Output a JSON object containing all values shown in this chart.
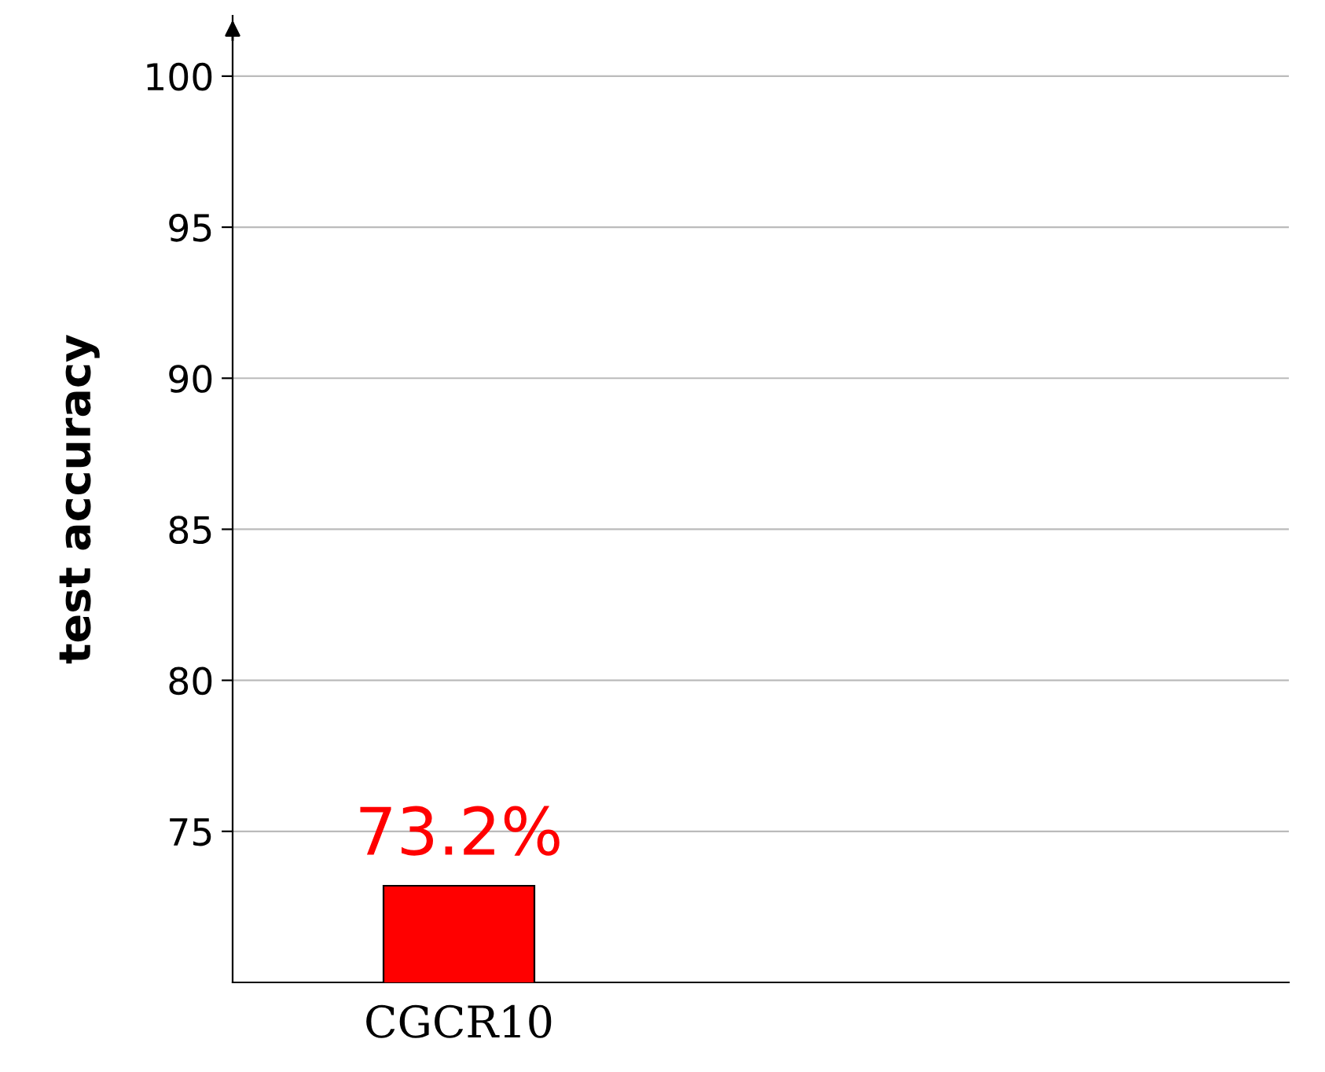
{
  "chart_data": {
    "type": "bar",
    "ylabel": "test accuracy",
    "categories": [
      "CGCR10"
    ],
    "series": [
      {
        "color": "#ff0000",
        "values": [
          73.2
        ],
        "value_labels": [
          "73.2%"
        ]
      }
    ],
    "ylim": [
      70,
      102
    ],
    "yticks": [
      75,
      80,
      85,
      90,
      95,
      100
    ],
    "grid": "y"
  }
}
